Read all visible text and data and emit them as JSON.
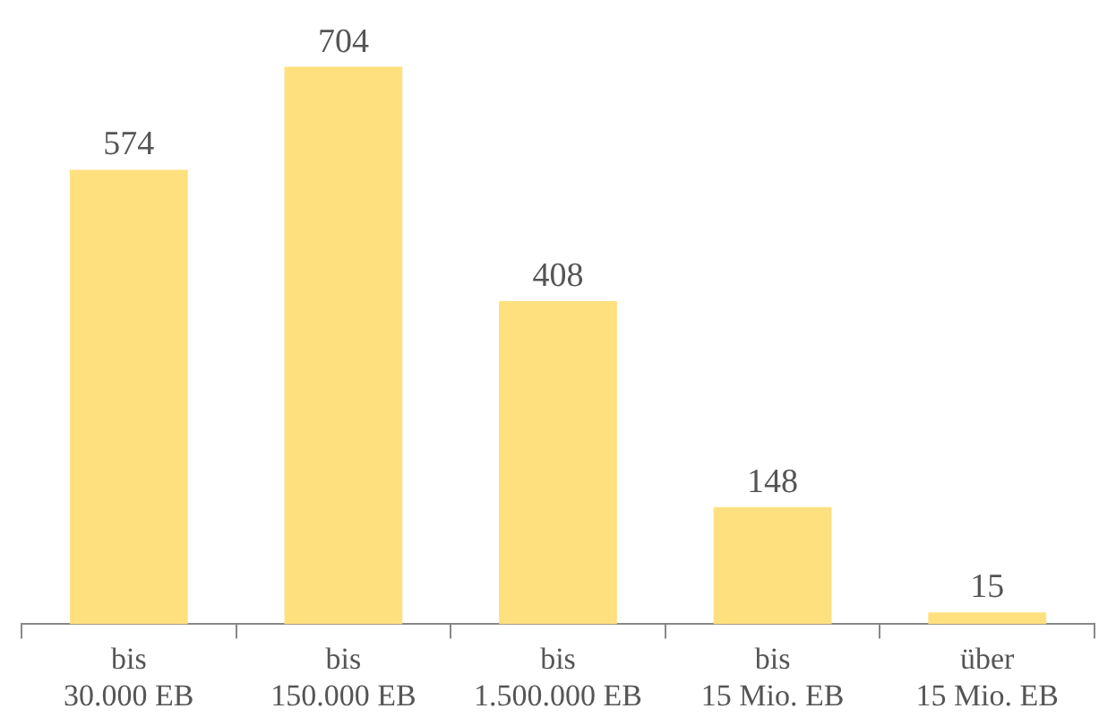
{
  "chart_data": {
    "type": "bar",
    "categories": [
      "bis 30.000 EB",
      "bis 150.000 EB",
      "bis 1.500.000 EB",
      "bis 15 Mio. EB",
      "über 15 Mio. EB"
    ],
    "values": [
      574,
      704,
      408,
      148,
      15
    ],
    "color": "#ffe07f",
    "data_labels": true,
    "grid": false,
    "legend": false
  }
}
